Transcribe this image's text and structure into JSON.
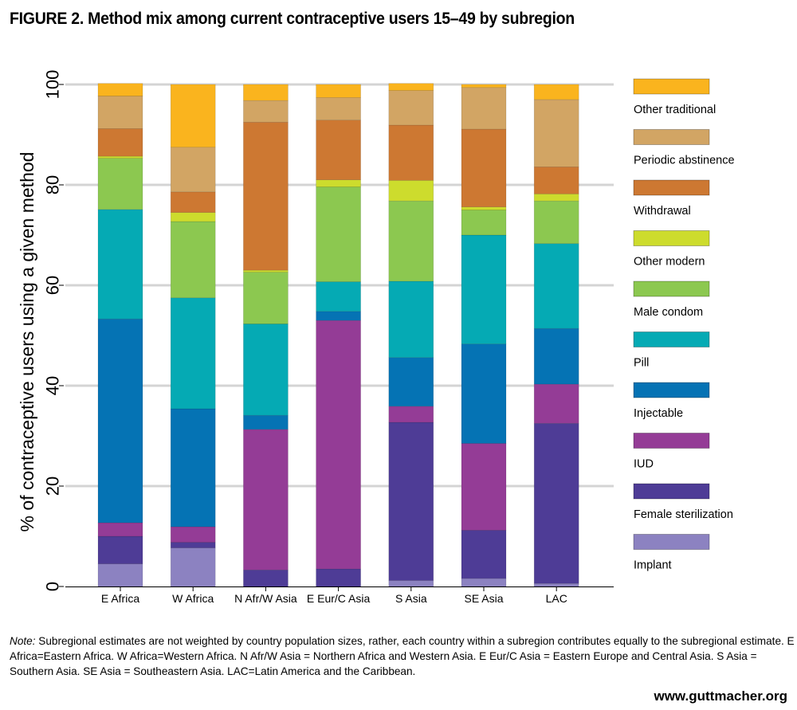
{
  "title": "FIGURE 2. Method mix among current contraceptive users 15–49 by subregion",
  "note": {
    "label": "Note:",
    "text": " Subregional estimates are not weighted by country population sizes, rather, each country within a subregion contributes equally to the subregional estimate. E Africa=Eastern Africa. W Africa=Western Africa. N Afr/W Asia = Northern Africa and Western Asia. E Eur/C Asia = Eastern Europe and Central Asia. S Asia = Southern Asia. SE Asia = Southeastern Asia. LAC=Latin America and the Caribbean."
  },
  "website": "www.guttmacher.org",
  "chart_data": {
    "type": "bar",
    "stacked": true,
    "ylabel": "% of contraceptive users using a given method",
    "xlabel": "",
    "ylim": [
      0,
      100
    ],
    "yticks": [
      0,
      20,
      40,
      60,
      80,
      100
    ],
    "grid": true,
    "legend_position": "right",
    "categories": [
      "E Africa",
      "W Africa",
      "N Afr/W Asia",
      "E Eur/C Asia",
      "S Asia",
      "SE Asia",
      "LAC"
    ],
    "series": [
      {
        "name": "Implant",
        "color": "#8c82c1",
        "values": [
          4.5,
          7.7,
          0.0,
          0.0,
          1.2,
          1.6,
          0.6
        ]
      },
      {
        "name": "Female sterilization",
        "color": "#4e3c96",
        "values": [
          5.5,
          1.1,
          3.3,
          3.5,
          31.5,
          9.6,
          31.9
        ]
      },
      {
        "name": "IUD",
        "color": "#943c96",
        "values": [
          2.7,
          3.1,
          28.0,
          49.5,
          3.2,
          17.3,
          7.8
        ]
      },
      {
        "name": "Injectable",
        "color": "#0573b4",
        "values": [
          40.6,
          23.5,
          2.8,
          1.8,
          9.7,
          19.8,
          11.1
        ]
      },
      {
        "name": "Pill",
        "color": "#05aab4",
        "values": [
          21.8,
          22.1,
          18.2,
          5.9,
          15.2,
          21.7,
          16.9
        ]
      },
      {
        "name": "Male condom",
        "color": "#8cc850",
        "values": [
          10.2,
          15.2,
          10.3,
          18.9,
          16.0,
          5.0,
          8.5
        ]
      },
      {
        "name": "Other modern",
        "color": "#cddc2d",
        "values": [
          0.4,
          1.8,
          0.4,
          1.4,
          4.1,
          0.6,
          1.4
        ]
      },
      {
        "name": "Withdrawal",
        "color": "#cd7832",
        "values": [
          5.5,
          4.1,
          29.5,
          11.9,
          11.0,
          15.5,
          5.4
        ]
      },
      {
        "name": "Periodic abstinence",
        "color": "#d2a564",
        "values": [
          6.5,
          8.9,
          4.3,
          4.5,
          6.9,
          8.3,
          13.4
        ]
      },
      {
        "name": "Other traditional",
        "color": "#fab41e",
        "values": [
          2.5,
          12.5,
          3.2,
          2.6,
          1.4,
          0.6,
          3.0
        ]
      }
    ]
  }
}
